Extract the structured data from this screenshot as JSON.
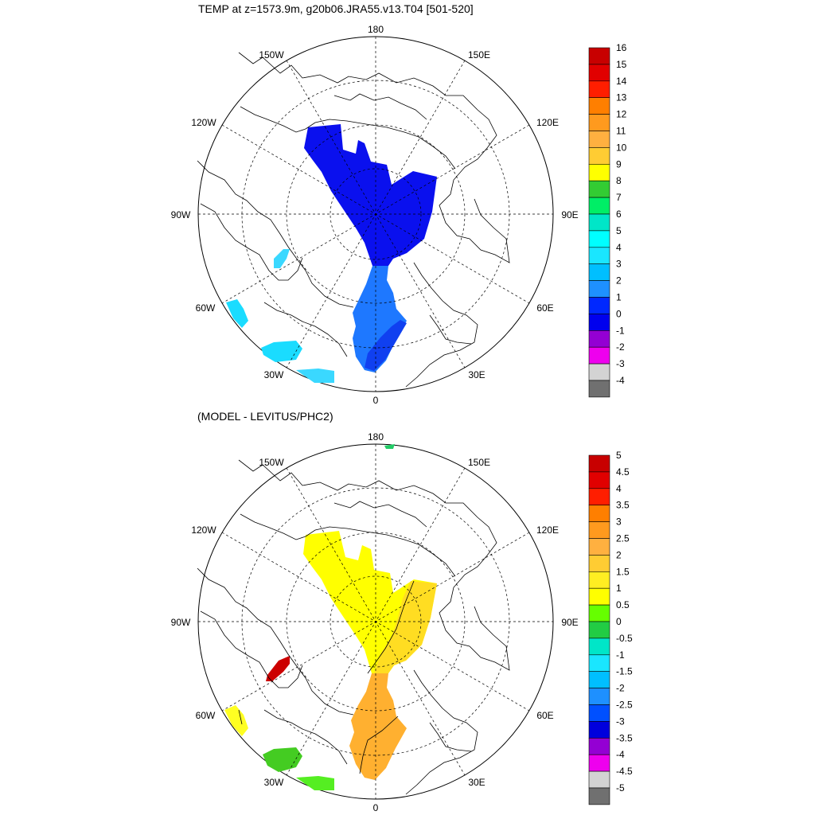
{
  "panels": [
    {
      "title": "TEMP at z=1573.9m, g20b06.JRA55.v13.T04 [501-520]",
      "lon_labels": [
        "180",
        "150E",
        "120E",
        "90E",
        "60E",
        "30E",
        "0",
        "30W",
        "60W",
        "90W",
        "120W",
        "150W"
      ],
      "colorbar_labels": [
        "16",
        "15",
        "14",
        "13",
        "12",
        "11",
        "10",
        "9",
        "8",
        "7",
        "6",
        "5",
        "4",
        "3",
        "2",
        "1",
        "0",
        "-1",
        "-2",
        "-3",
        "-4"
      ],
      "colorbar_colors": [
        "#c80000",
        "#e10000",
        "#ff1e00",
        "#ff7f00",
        "#ff9a1e",
        "#ffb040",
        "#ffcc33",
        "#ffff00",
        "#33cc33",
        "#00ee66",
        "#00e6c8",
        "#00ffff",
        "#1ae6ff",
        "#00bfff",
        "#1e90ff",
        "#0028ff",
        "#0000ee",
        "#9400d3",
        "#ee00ee",
        "#d3d3d3",
        "#707070"
      ],
      "fills": {
        "arctic": "#0a10ee",
        "nordic": "#1e78ff",
        "nordic_dark": "#1040f0",
        "labrador": "#1adcff",
        "baffin": "#3ad8ff"
      }
    },
    {
      "title": "(MODEL - LEVITUS/PHC2)",
      "lon_labels": [
        "180",
        "150E",
        "120E",
        "90E",
        "60E",
        "30E",
        "0",
        "30W",
        "60W",
        "90W",
        "120W",
        "150W"
      ],
      "colorbar_labels": [
        "5",
        "4.5",
        "4",
        "3.5",
        "3",
        "2.5",
        "2",
        "1.5",
        "1",
        "0.5",
        "0",
        "-0.5",
        "-1",
        "-1.5",
        "-2",
        "-2.5",
        "-3",
        "-3.5",
        "-4",
        "-4.5",
        "-5"
      ],
      "colorbar_colors": [
        "#c80000",
        "#e10000",
        "#ff1e00",
        "#ff7f00",
        "#ff9a1e",
        "#ffb040",
        "#ffcc33",
        "#ffee22",
        "#ffff00",
        "#66ff00",
        "#22cc44",
        "#00e6c8",
        "#1ae6ff",
        "#00bfff",
        "#1e90ff",
        "#0050ff",
        "#0000dd",
        "#9400d3",
        "#ee00ee",
        "#d3d3d3",
        "#707070"
      ],
      "fills": {
        "arctic": "#ffff00",
        "arctic_warm": "#ffdd22",
        "nordic": "#ffb030",
        "labrador": "#ffff22",
        "baffin": "#cc0000",
        "iceland_sea": "#44cc22",
        "north_sea": "#55ee22",
        "bering": "#22cc66"
      }
    }
  ]
}
